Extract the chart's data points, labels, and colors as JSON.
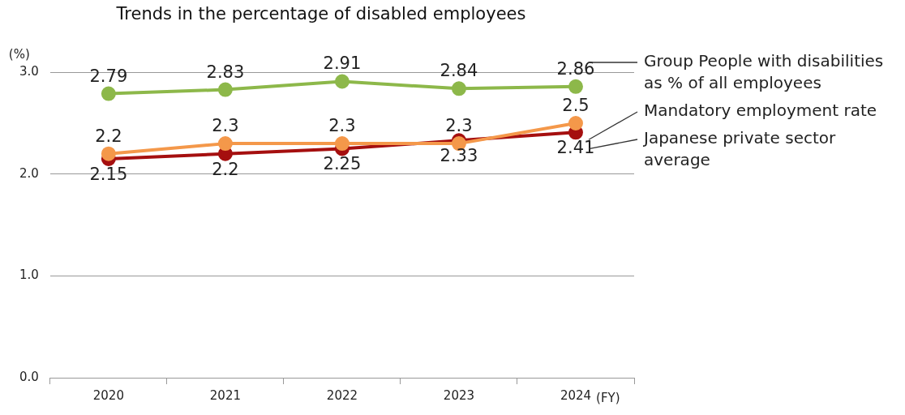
{
  "chart_data": {
    "type": "line",
    "title": "Trends in the percentage of disabled employees",
    "categories": [
      "2020",
      "2021",
      "2022",
      "2023",
      "2024"
    ],
    "xlabel": "(FY)",
    "ylabel": "(%)",
    "series": [
      {
        "name": "Group People with disabilities as % of all employees",
        "color": "#8db84a",
        "values": [
          2.79,
          2.83,
          2.91,
          2.84,
          2.86
        ]
      },
      {
        "name": "Mandatory employment rate",
        "color": "#f4984a",
        "values": [
          2.2,
          2.3,
          2.3,
          2.3,
          2.5
        ]
      },
      {
        "name": "Japanese private sector average",
        "color": "#a50f0f",
        "values": [
          2.15,
          2.2,
          2.25,
          2.33,
          2.41
        ]
      }
    ],
    "ylim": [
      0,
      3
    ],
    "yticks": [
      {
        "value": 0,
        "label": "0.0"
      },
      {
        "value": 1,
        "label": "1.0"
      },
      {
        "value": 2,
        "label": "2.0"
      },
      {
        "value": 3,
        "label": "3.0"
      }
    ],
    "grid": "y",
    "marker": "circle",
    "line_style": "solid",
    "data_labels": true
  }
}
